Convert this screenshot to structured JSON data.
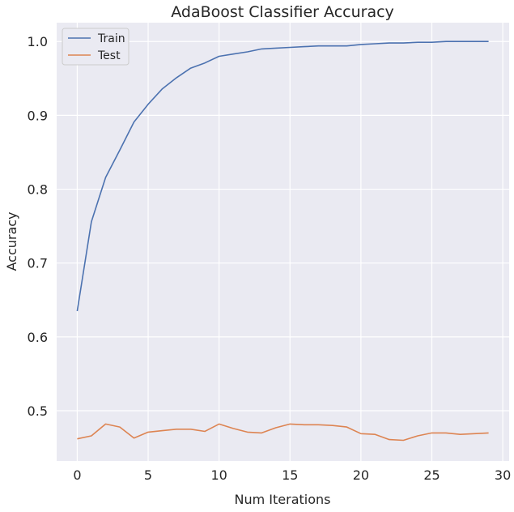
{
  "chart_data": {
    "type": "line",
    "title": "AdaBoost Classifier Accuracy",
    "xlabel": "Num Iterations",
    "ylabel": "Accuracy",
    "xlim": [
      -1.45,
      30.45
    ],
    "ylim": [
      0.432,
      1.0255
    ],
    "xticks": [
      0,
      5,
      10,
      15,
      20,
      25,
      30
    ],
    "yticks": [
      0.5,
      0.6,
      0.7,
      0.8,
      0.9,
      1.0
    ],
    "ytick_labels": [
      "0.5",
      "0.6",
      "0.7",
      "0.8",
      "0.9",
      "1.0"
    ],
    "grid": true,
    "legend_position": "top-left",
    "x": [
      0,
      1,
      2,
      3,
      4,
      5,
      6,
      7,
      8,
      9,
      10,
      11,
      12,
      13,
      14,
      15,
      16,
      17,
      18,
      19,
      20,
      21,
      22,
      23,
      24,
      25,
      26,
      27,
      28,
      29
    ],
    "series": [
      {
        "name": "Train",
        "color": "#4c72b0",
        "values": [
          0.635,
          0.756,
          0.816,
          0.853,
          0.891,
          0.915,
          0.936,
          0.951,
          0.964,
          0.971,
          0.98,
          0.983,
          0.986,
          0.99,
          0.991,
          0.992,
          0.993,
          0.994,
          0.994,
          0.994,
          0.996,
          0.997,
          0.998,
          0.998,
          0.999,
          0.999,
          1.0,
          1.0,
          1.0,
          1.0
        ]
      },
      {
        "name": "Test",
        "color": "#dd8452",
        "values": [
          0.462,
          0.466,
          0.482,
          0.478,
          0.463,
          0.471,
          0.473,
          0.475,
          0.475,
          0.472,
          0.482,
          0.476,
          0.471,
          0.47,
          0.477,
          0.482,
          0.481,
          0.481,
          0.48,
          0.478,
          0.469,
          0.468,
          0.461,
          0.46,
          0.466,
          0.47,
          0.47,
          0.468,
          0.469,
          0.47
        ]
      }
    ]
  }
}
